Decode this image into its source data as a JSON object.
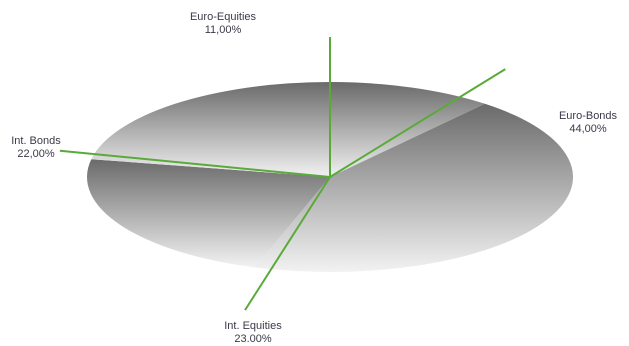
{
  "chart_data": {
    "type": "pie",
    "title": "",
    "slices": [
      {
        "label": "Euro-Equities",
        "value": 11.0,
        "value_label": "11,00%"
      },
      {
        "label": "Euro-Bonds",
        "value": 44.0,
        "value_label": "44,00%"
      },
      {
        "label": "Int. Equities",
        "value": 23.0,
        "value_label": "23.00%"
      },
      {
        "label": "Int. Bonds",
        "value": 22.0,
        "value_label": "22,00%"
      }
    ],
    "legend": "none",
    "colors": {
      "fill_top": "#6a6a6a",
      "fill_bottom": "#f2f2f2",
      "divider": "#5aaa3a",
      "label": "#3a3a4a"
    }
  }
}
